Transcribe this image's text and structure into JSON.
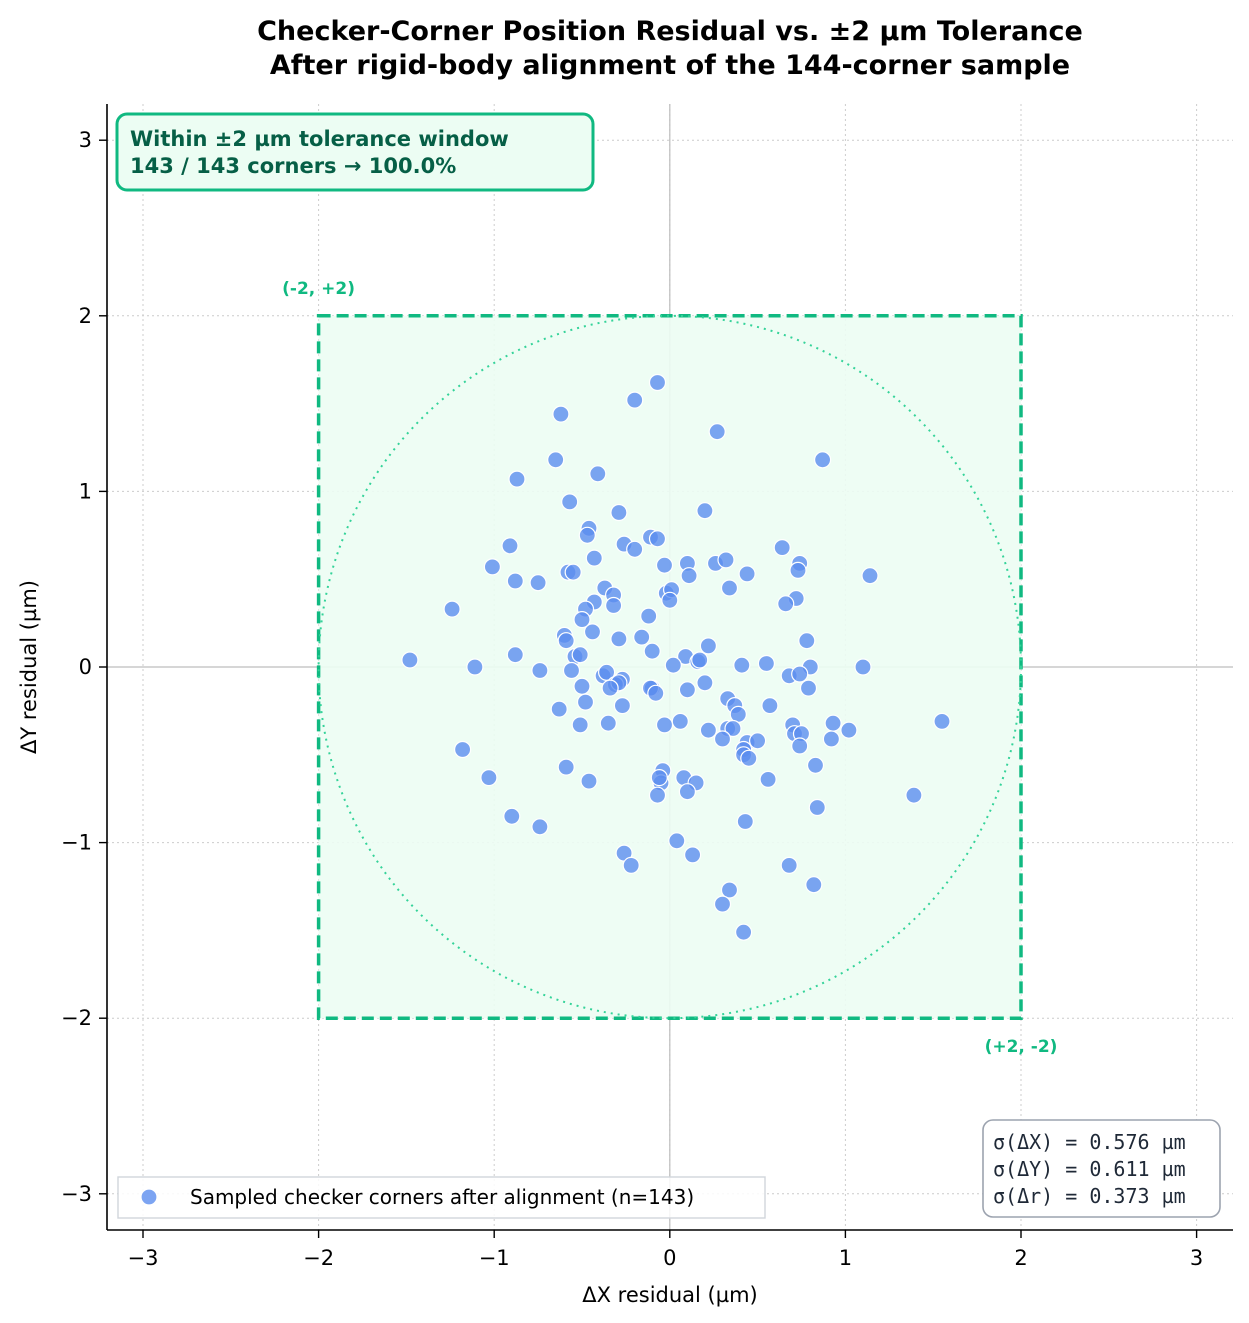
{
  "chart_data": {
    "type": "scatter",
    "title_line1": "Checker-Corner Position Residual vs. ±2 µm Tolerance",
    "title_line2": "After rigid-body alignment of the 144-corner sample",
    "xlabel": "ΔX residual (µm)",
    "ylabel": "ΔY residual (µm)",
    "xlim": [
      -3.2,
      3.2
    ],
    "ylim": [
      -3.2,
      3.2
    ],
    "xticks": [
      -3,
      -2,
      -1,
      0,
      1,
      2,
      3
    ],
    "yticks": [
      -3,
      -2,
      -1,
      0,
      1,
      2,
      3
    ],
    "xtick_labels": [
      "−3",
      "−2",
      "−1",
      "0",
      "1",
      "2",
      "3"
    ],
    "ytick_labels": [
      "−3",
      "−2",
      "−1",
      "0",
      "1",
      "2",
      "3"
    ],
    "grid": true,
    "tolerance_um": 2,
    "corner_label_tl": "(-2, +2)",
    "corner_label_br": "(+2, -2)",
    "summary_line1": "Within ±2 µm tolerance window",
    "summary_line2": "143 / 143 corners → 100.0%",
    "stats": [
      "σ(ΔX) = 0.576 µm",
      "σ(ΔY) = 0.611 µm",
      "σ(Δr) = 0.373 µm"
    ],
    "legend_placement": "lower-left",
    "series": [
      {
        "name": "Sampled checker corners after alignment (n=143)",
        "color": "#5b8def",
        "points": [
          [
            -0.07,
            1.62
          ],
          [
            -0.2,
            1.52
          ],
          [
            -0.62,
            1.44
          ],
          [
            0.27,
            1.34
          ],
          [
            -0.65,
            1.18
          ],
          [
            0.87,
            1.18
          ],
          [
            -0.41,
            1.1
          ],
          [
            -0.87,
            1.07
          ],
          [
            -0.57,
            0.94
          ],
          [
            -0.29,
            0.88
          ],
          [
            0.2,
            0.89
          ],
          [
            -0.46,
            0.79
          ],
          [
            -0.47,
            0.75
          ],
          [
            -0.11,
            0.74
          ],
          [
            -0.07,
            0.73
          ],
          [
            -0.26,
            0.7
          ],
          [
            -0.91,
            0.69
          ],
          [
            -0.2,
            0.67
          ],
          [
            0.64,
            0.68
          ],
          [
            -1.01,
            0.57
          ],
          [
            0.1,
            0.59
          ],
          [
            0.26,
            0.59
          ],
          [
            0.32,
            0.61
          ],
          [
            0.74,
            0.59
          ],
          [
            -0.03,
            0.58
          ],
          [
            -0.58,
            0.54
          ],
          [
            -0.55,
            0.54
          ],
          [
            0.11,
            0.52
          ],
          [
            0.44,
            0.53
          ],
          [
            0.73,
            0.55
          ],
          [
            1.14,
            0.52
          ],
          [
            -0.88,
            0.49
          ],
          [
            -0.75,
            0.48
          ],
          [
            -0.43,
            0.62
          ],
          [
            -0.37,
            0.45
          ],
          [
            0.34,
            0.45
          ],
          [
            -0.32,
            0.41
          ],
          [
            -0.02,
            0.42
          ],
          [
            0.01,
            0.44
          ],
          [
            0.0,
            0.38
          ],
          [
            0.72,
            0.39
          ],
          [
            0.66,
            0.36
          ],
          [
            -1.24,
            0.33
          ],
          [
            -0.32,
            0.35
          ],
          [
            -0.43,
            0.37
          ],
          [
            -0.48,
            0.33
          ],
          [
            -0.5,
            0.27
          ],
          [
            -0.12,
            0.29
          ],
          [
            -0.44,
            0.2
          ],
          [
            -0.16,
            0.17
          ],
          [
            -0.6,
            0.18
          ],
          [
            -0.59,
            0.15
          ],
          [
            -0.29,
            0.16
          ],
          [
            0.78,
            0.15
          ],
          [
            0.22,
            0.12
          ],
          [
            -0.1,
            0.09
          ],
          [
            -0.88,
            0.07
          ],
          [
            -0.54,
            0.06
          ],
          [
            -0.51,
            0.07
          ],
          [
            0.09,
            0.06
          ],
          [
            0.16,
            0.03
          ],
          [
            0.17,
            0.04
          ],
          [
            -1.48,
            0.04
          ],
          [
            -1.11,
            0.0
          ],
          [
            -0.74,
            -0.02
          ],
          [
            -0.56,
            -0.02
          ],
          [
            0.02,
            0.01
          ],
          [
            0.41,
            0.01
          ],
          [
            0.55,
            0.02
          ],
          [
            0.8,
            0.0
          ],
          [
            1.1,
            0.0
          ],
          [
            -0.38,
            -0.05
          ],
          [
            -0.36,
            -0.03
          ],
          [
            -0.27,
            -0.07
          ],
          [
            -0.31,
            -0.1
          ],
          [
            -0.29,
            -0.09
          ],
          [
            -0.34,
            -0.12
          ],
          [
            -0.5,
            -0.11
          ],
          [
            -0.1,
            -0.12
          ],
          [
            -0.11,
            -0.12
          ],
          [
            -0.08,
            -0.15
          ],
          [
            0.1,
            -0.13
          ],
          [
            0.2,
            -0.09
          ],
          [
            0.68,
            -0.05
          ],
          [
            0.74,
            -0.04
          ],
          [
            0.79,
            -0.12
          ],
          [
            -0.48,
            -0.2
          ],
          [
            -0.27,
            -0.22
          ],
          [
            -0.63,
            -0.24
          ],
          [
            0.33,
            -0.18
          ],
          [
            0.37,
            -0.22
          ],
          [
            0.39,
            -0.27
          ],
          [
            0.57,
            -0.22
          ],
          [
            -0.51,
            -0.33
          ],
          [
            -0.35,
            -0.32
          ],
          [
            -0.03,
            -0.33
          ],
          [
            0.06,
            -0.31
          ],
          [
            0.22,
            -0.36
          ],
          [
            0.33,
            -0.35
          ],
          [
            0.36,
            -0.35
          ],
          [
            0.7,
            -0.33
          ],
          [
            0.71,
            -0.38
          ],
          [
            0.75,
            -0.38
          ],
          [
            0.93,
            -0.32
          ],
          [
            1.02,
            -0.36
          ],
          [
            1.55,
            -0.31
          ],
          [
            0.3,
            -0.41
          ],
          [
            0.44,
            -0.43
          ],
          [
            0.5,
            -0.42
          ],
          [
            0.74,
            -0.45
          ],
          [
            0.92,
            -0.41
          ],
          [
            -1.18,
            -0.47
          ],
          [
            0.42,
            -0.47
          ],
          [
            0.42,
            -0.5
          ],
          [
            0.45,
            -0.52
          ],
          [
            0.83,
            -0.56
          ],
          [
            -0.59,
            -0.57
          ],
          [
            -0.46,
            -0.65
          ],
          [
            -1.03,
            -0.63
          ],
          [
            -0.04,
            -0.59
          ],
          [
            -0.05,
            -0.66
          ],
          [
            -0.06,
            -0.63
          ],
          [
            0.08,
            -0.63
          ],
          [
            0.15,
            -0.66
          ],
          [
            0.56,
            -0.64
          ],
          [
            -0.07,
            -0.73
          ],
          [
            0.1,
            -0.71
          ],
          [
            1.39,
            -0.73
          ],
          [
            0.84,
            -0.8
          ],
          [
            -0.9,
            -0.85
          ],
          [
            -0.74,
            -0.91
          ],
          [
            0.43,
            -0.88
          ],
          [
            0.04,
            -0.99
          ],
          [
            -0.26,
            -1.06
          ],
          [
            -0.22,
            -1.13
          ],
          [
            0.13,
            -1.07
          ],
          [
            0.68,
            -1.13
          ],
          [
            0.82,
            -1.24
          ],
          [
            0.34,
            -1.27
          ],
          [
            0.3,
            -1.35
          ],
          [
            0.42,
            -1.51
          ]
        ]
      }
    ]
  }
}
